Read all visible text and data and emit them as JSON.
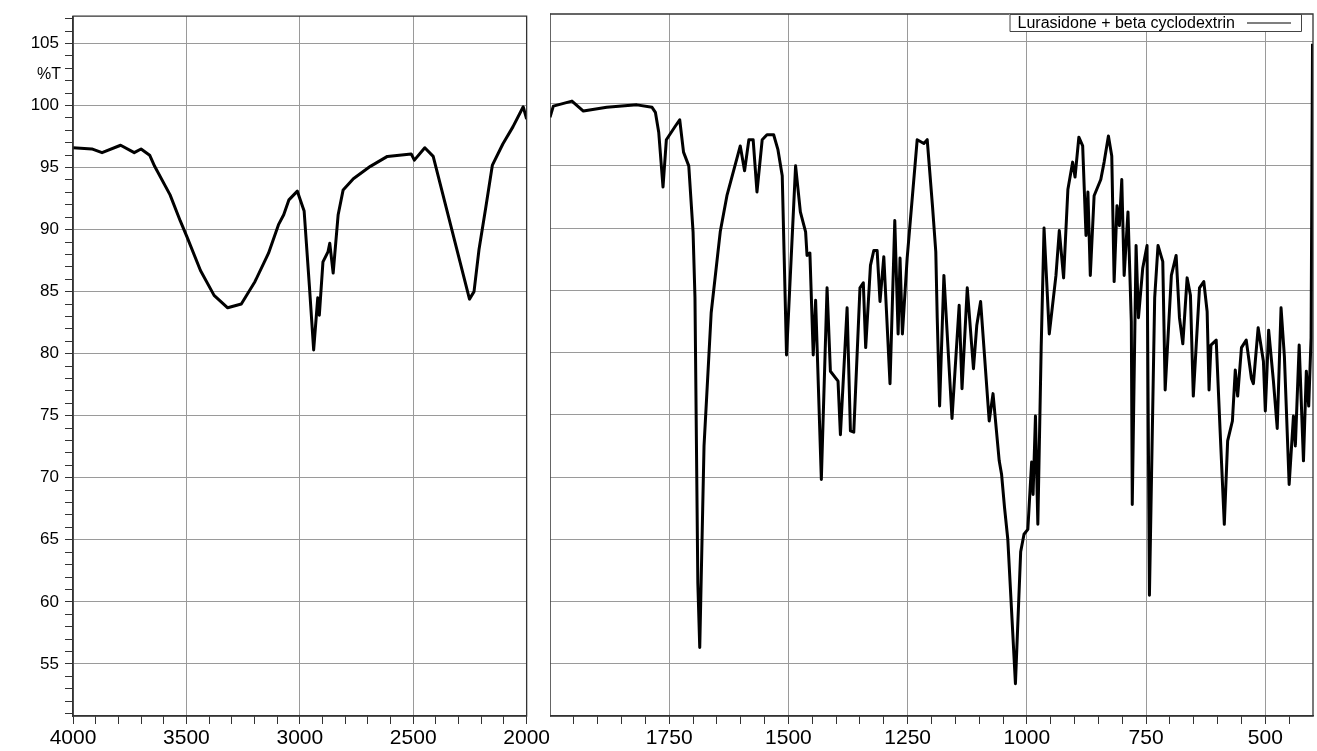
{
  "chart_data": [
    {
      "type": "line",
      "ylabel": "%T",
      "xlim": [
        4000,
        2000
      ],
      "ylim": [
        50.8,
        107.2
      ],
      "grid": true,
      "xticks": [
        4000,
        {
          "value": 3900,
          "label": null
        },
        {
          "value": 3800,
          "label": null
        },
        {
          "value": 3700,
          "label": null
        },
        {
          "value": 3600,
          "label": null
        },
        3500,
        {
          "value": 3400,
          "label": null
        },
        {
          "value": 3300,
          "label": null
        },
        {
          "value": 3200,
          "label": null
        },
        {
          "value": 3100,
          "label": null
        },
        3000,
        {
          "value": 2900,
          "label": null
        },
        {
          "value": 2800,
          "label": null
        },
        {
          "value": 2700,
          "label": null
        },
        {
          "value": 2600,
          "label": null
        },
        2500,
        {
          "value": 2400,
          "label": null
        },
        {
          "value": 2300,
          "label": null
        },
        {
          "value": 2200,
          "label": null
        },
        {
          "value": 2100,
          "label": null
        },
        2000
      ],
      "yticks": [
        {
          "value": 51,
          "label": null
        },
        {
          "value": 52,
          "label": null
        },
        {
          "value": 53,
          "label": null
        },
        {
          "value": 54,
          "label": null
        },
        55,
        {
          "value": 56,
          "label": null
        },
        {
          "value": 57,
          "label": null
        },
        {
          "value": 58,
          "label": null
        },
        {
          "value": 59,
          "label": null
        },
        60,
        {
          "value": 61,
          "label": null
        },
        {
          "value": 62,
          "label": null
        },
        {
          "value": 63,
          "label": null
        },
        {
          "value": 64,
          "label": null
        },
        65,
        {
          "value": 66,
          "label": null
        },
        {
          "value": 67,
          "label": null
        },
        {
          "value": 68,
          "label": null
        },
        {
          "value": 69,
          "label": null
        },
        70,
        {
          "value": 71,
          "label": null
        },
        {
          "value": 72,
          "label": null
        },
        {
          "value": 73,
          "label": null
        },
        {
          "value": 74,
          "label": null
        },
        75,
        {
          "value": 76,
          "label": null
        },
        {
          "value": 77,
          "label": null
        },
        {
          "value": 78,
          "label": null
        },
        {
          "value": 79,
          "label": null
        },
        80,
        {
          "value": 81,
          "label": null
        },
        {
          "value": 82,
          "label": null
        },
        {
          "value": 83,
          "label": null
        },
        {
          "value": 84,
          "label": null
        },
        85,
        {
          "value": 86,
          "label": null
        },
        {
          "value": 87,
          "label": null
        },
        {
          "value": 88,
          "label": null
        },
        {
          "value": 89,
          "label": null
        },
        90,
        {
          "value": 91,
          "label": null
        },
        {
          "value": 92,
          "label": null
        },
        {
          "value": 93,
          "label": null
        },
        {
          "value": 94,
          "label": null
        },
        95,
        {
          "value": 96,
          "label": null
        },
        {
          "value": 97,
          "label": null
        },
        {
          "value": 98,
          "label": null
        },
        {
          "value": 99,
          "label": null
        },
        100,
        {
          "value": 101,
          "label": null
        },
        {
          "value": 102,
          "label": null
        },
        {
          "value": 103,
          "label": null
        },
        {
          "value": 104,
          "label": null
        },
        105,
        {
          "value": 106,
          "label": null
        },
        {
          "value": 107,
          "label": null
        }
      ],
      "x": [
        4000,
        3917,
        3872,
        3790,
        3730,
        3700,
        3662,
        3640,
        3572,
        3527,
        3497,
        3438,
        3378,
        3318,
        3258,
        3198,
        3138,
        3094,
        3071,
        3048,
        3011,
        2981,
        2958,
        2939,
        2921,
        2914,
        2898,
        2876,
        2868,
        2853,
        2831,
        2809,
        2764,
        2689,
        2614,
        2509,
        2495,
        2449,
        2412,
        2252,
        2232,
        2210,
        2180,
        2151,
        2105,
        2060,
        2015,
        2000
      ],
      "series": [
        {
          "color": "#000000",
          "values": [
            96.6,
            96.5,
            96.2,
            96.8,
            96.2,
            96.5,
            96.0,
            95.1,
            92.8,
            90.7,
            89.4,
            86.7,
            84.7,
            83.7,
            84.0,
            85.8,
            88.1,
            90.4,
            91.2,
            92.4,
            93.1,
            91.5,
            85.5,
            80.3,
            84.5,
            83.1,
            87.4,
            88.2,
            88.9,
            86.5,
            91.2,
            93.2,
            94.1,
            95.1,
            95.9,
            96.1,
            95.6,
            96.6,
            95.9,
            84.4,
            85.0,
            88.4,
            91.8,
            95.2,
            96.9,
            98.3,
            99.9,
            98.9
          ]
        }
      ]
    },
    {
      "type": "line",
      "xlim": [
        2000,
        400
      ],
      "ylim": [
        50.8,
        107.2
      ],
      "grid": true,
      "tick_labels": "x",
      "legend": "top right",
      "xticks": [
        {
          "value": 1950,
          "label": null
        },
        {
          "value": 1900,
          "label": null
        },
        {
          "value": 1850,
          "label": null
        },
        {
          "value": 1800,
          "label": null
        },
        1750,
        {
          "value": 1700,
          "label": null
        },
        {
          "value": 1650,
          "label": null
        },
        {
          "value": 1600,
          "label": null
        },
        {
          "value": 1550,
          "label": null
        },
        1500,
        {
          "value": 1450,
          "label": null
        },
        {
          "value": 1400,
          "label": null
        },
        {
          "value": 1350,
          "label": null
        },
        {
          "value": 1300,
          "label": null
        },
        1250,
        {
          "value": 1200,
          "label": null
        },
        {
          "value": 1150,
          "label": null
        },
        {
          "value": 1100,
          "label": null
        },
        {
          "value": 1050,
          "label": null
        },
        1000,
        {
          "value": 950,
          "label": null
        },
        {
          "value": 900,
          "label": null
        },
        {
          "value": 850,
          "label": null
        },
        {
          "value": 800,
          "label": null
        },
        750,
        {
          "value": 700,
          "label": null
        },
        {
          "value": 650,
          "label": null
        },
        {
          "value": 600,
          "label": null
        },
        {
          "value": 550,
          "label": null
        },
        500,
        {
          "value": 450,
          "label": null
        }
      ],
      "yticks": [
        55,
        60,
        65,
        70,
        75,
        80,
        85,
        90,
        95,
        100,
        105
      ],
      "x": [
        2000,
        1993,
        1954,
        1930,
        1881,
        1818,
        1786,
        1779,
        1772,
        1763,
        1756,
        1737,
        1728,
        1720,
        1709,
        1700,
        1696,
        1690,
        1686,
        1677,
        1662,
        1643,
        1629,
        1601,
        1592,
        1583,
        1574,
        1566,
        1555,
        1545,
        1531,
        1522,
        1513,
        1504,
        1485,
        1475,
        1464,
        1461,
        1455,
        1448,
        1443,
        1431,
        1419,
        1412,
        1396,
        1391,
        1377,
        1370,
        1363,
        1350,
        1343,
        1338,
        1328,
        1321,
        1314,
        1308,
        1300,
        1287,
        1277,
        1270,
        1266,
        1261,
        1251,
        1230,
        1216,
        1209,
        1198,
        1191,
        1188,
        1183,
        1174,
        1157,
        1142,
        1136,
        1125,
        1112,
        1105,
        1097,
        1079,
        1071,
        1058,
        1053,
        1047,
        1040,
        1024,
        1013,
        1006,
        998,
        990,
        987,
        982,
        977,
        970,
        964,
        953,
        939,
        932,
        923,
        914,
        904,
        899,
        891,
        883,
        876,
        872,
        867,
        859,
        845,
        838,
        829,
        822,
        817,
        811,
        806,
        801,
        796,
        788,
        781,
        779,
        771,
        766,
        757,
        748,
        743,
        732,
        725,
        715,
        710,
        697,
        687,
        680,
        673,
        664,
        657,
        651,
        638,
        629,
        622,
        618,
        614,
        603,
        595,
        586,
        579,
        569,
        563,
        558,
        550,
        540,
        529,
        525,
        515,
        504,
        500,
        493,
        483,
        475,
        467,
        460,
        450,
        441,
        437,
        429,
        420,
        414,
        409,
        404,
        401
      ],
      "series": [
        {
          "name": "Lurasidone + beta cyclodextrin",
          "color": "#000000",
          "values": [
            98.9,
            99.8,
            100.2,
            99.4,
            99.7,
            99.9,
            99.7,
            99.3,
            97.7,
            93.3,
            97.1,
            98.2,
            98.7,
            96.1,
            95.0,
            89.7,
            84.4,
            61.5,
            56.3,
            72.5,
            83.2,
            89.7,
            92.6,
            96.6,
            94.6,
            97.1,
            97.1,
            92.9,
            97.1,
            97.5,
            97.5,
            96.3,
            94.2,
            79.8,
            95.0,
            91.3,
            89.7,
            87.8,
            88.0,
            79.8,
            84.2,
            69.8,
            85.2,
            78.5,
            77.7,
            73.4,
            83.6,
            73.7,
            73.6,
            85.2,
            85.6,
            80.4,
            87.0,
            88.2,
            88.2,
            84.1,
            87.7,
            77.5,
            90.6,
            81.5,
            87.6,
            81.5,
            87.6,
            97.1,
            96.8,
            97.1,
            91.8,
            88.1,
            82.8,
            75.7,
            86.2,
            74.7,
            83.8,
            77.1,
            85.2,
            78.7,
            82.2,
            84.1,
            74.5,
            76.7,
            71.3,
            70.2,
            67.6,
            65.0,
            53.4,
            64.0,
            65.4,
            65.8,
            71.2,
            68.6,
            74.9,
            66.2,
            80.4,
            90.0,
            81.5,
            86.2,
            89.8,
            86.0,
            93.1,
            95.3,
            94.1,
            97.3,
            96.6,
            89.4,
            92.9,
            86.2,
            92.6,
            93.9,
            95.3,
            97.4,
            95.8,
            85.7,
            91.8,
            90.2,
            93.9,
            86.2,
            91.3,
            82.5,
            67.8,
            88.6,
            82.8,
            86.8,
            88.6,
            60.5,
            84.4,
            88.6,
            87.3,
            77.0,
            86.2,
            87.8,
            82.8,
            80.7,
            86.0,
            84.6,
            76.5,
            85.2,
            85.7,
            83.3,
            77.0,
            80.6,
            81.0,
            73.9,
            66.2,
            72.9,
            74.5,
            78.6,
            76.5,
            80.4,
            81.0,
            77.9,
            77.5,
            82.0,
            79.3,
            75.3,
            81.8,
            77.7,
            73.9,
            83.6,
            79.7,
            69.4,
            74.9,
            72.5,
            80.6,
            71.3,
            78.5,
            75.7,
            81.2,
            104.8
          ]
        }
      ]
    }
  ]
}
